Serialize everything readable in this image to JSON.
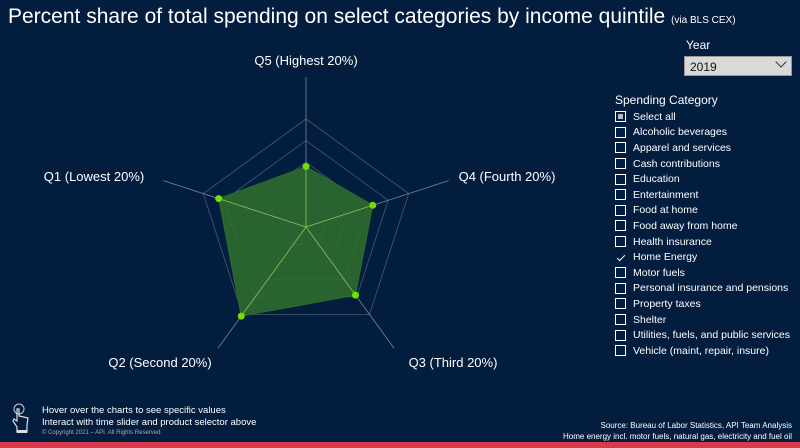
{
  "title": "Percent share of total spending on select categories by income quintile",
  "title_note": "(via BLS CEX)",
  "year": {
    "label": "Year",
    "selected": "2019"
  },
  "category_filter": {
    "label": "Spending Category",
    "items": [
      {
        "label": "Select all",
        "state": "partial"
      },
      {
        "label": "Alcoholic beverages",
        "state": "off"
      },
      {
        "label": "Apparel and services",
        "state": "off"
      },
      {
        "label": "Cash contributions",
        "state": "off"
      },
      {
        "label": "Education",
        "state": "off"
      },
      {
        "label": "Entertainment",
        "state": "off"
      },
      {
        "label": "Food at home",
        "state": "off"
      },
      {
        "label": "Food away from home",
        "state": "off"
      },
      {
        "label": "Health insurance",
        "state": "off"
      },
      {
        "label": "Home Energy",
        "state": "on"
      },
      {
        "label": "Motor fuels",
        "state": "off"
      },
      {
        "label": "Personal insurance and pensions",
        "state": "off"
      },
      {
        "label": "Property taxes",
        "state": "off"
      },
      {
        "label": "Shelter",
        "state": "off"
      },
      {
        "label": "Utilities, fuels, and public services",
        "state": "off"
      },
      {
        "label": "Vehicle (maint, repair, insure)",
        "state": "off"
      }
    ]
  },
  "footer": {
    "hint1": "Hover over the charts to see specific values",
    "hint2": "Interact with time slider and product selector above",
    "copyright": "© Copyright 2021 – API. All Rights Reserved.",
    "source": "Source: Bureau of Labor Statistics, API Team Analysis",
    "note": "Home energy incl. motor fuels, natural gas, electricity and fuel oil"
  },
  "colors": {
    "fill": "#2e6b2e",
    "point": "#6fe000",
    "grid": "#4a5a70",
    "accent": "#d83a4c"
  },
  "chart_data": {
    "type": "radar",
    "series": [
      {
        "name": "Home Energy",
        "values": [
          5.6,
          6.5,
          7.8,
          10.2,
          8.5
        ]
      }
    ],
    "categories": [
      "Q5 (Highest 20%)",
      "Q4 (Fourth 20%)",
      "Q3 (Third 20%)",
      "Q2 (Second 20%)",
      "Q1 (Lowest 20%)"
    ],
    "rmax": 10,
    "rings": 5
  }
}
